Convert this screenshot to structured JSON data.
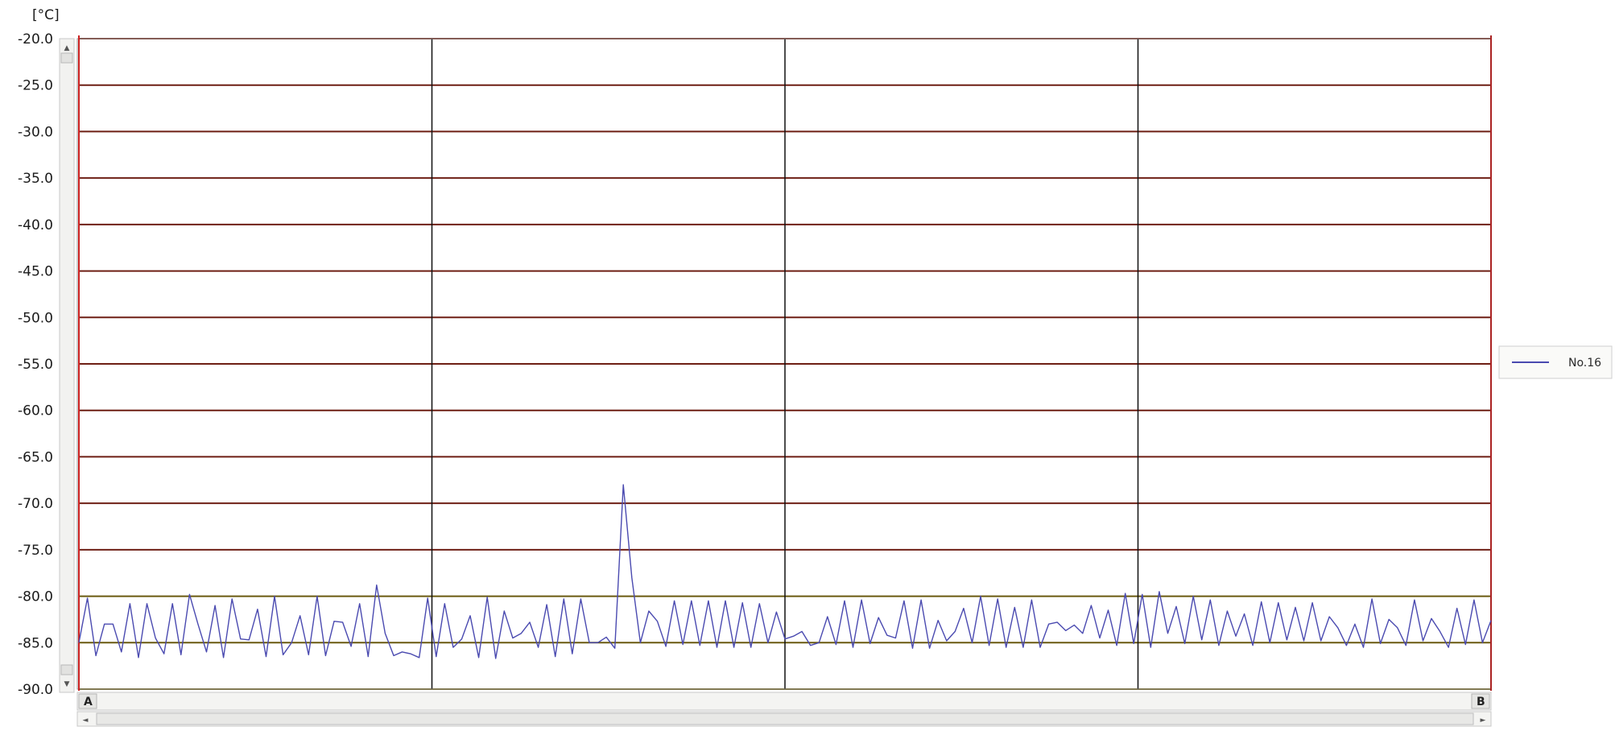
{
  "chart_data": {
    "type": "line",
    "unit_label": "[°C]",
    "ylim": [
      -90.0,
      -20.0
    ],
    "y_ticks": [
      "-20.0",
      "-25.0",
      "-30.0",
      "-35.0",
      "-40.0",
      "-45.0",
      "-50.0",
      "-55.0",
      "-60.0",
      "-65.0",
      "-70.0",
      "-75.0",
      "-80.0",
      "-85.0",
      "-90.0"
    ],
    "vertical_gridlines": 3,
    "grid": true,
    "legend_position": "right",
    "series": [
      {
        "name": "No.16",
        "color": "#4a4ab0",
        "values": [
          -85.0,
          -80.2,
          -86.4,
          -83.0,
          -83.0,
          -86.0,
          -80.8,
          -86.6,
          -80.8,
          -84.5,
          -86.2,
          -80.8,
          -86.3,
          -79.8,
          -83.0,
          -86.0,
          -81.0,
          -86.6,
          -80.3,
          -84.6,
          -84.7,
          -81.4,
          -86.5,
          -80.0,
          -86.3,
          -85.0,
          -82.1,
          -86.3,
          -80.0,
          -86.4,
          -82.7,
          -82.8,
          -85.4,
          -80.8,
          -86.5,
          -78.8,
          -84.0,
          -86.4,
          -86.0,
          -86.2,
          -86.6,
          -80.2,
          -86.5,
          -80.8,
          -85.5,
          -84.6,
          -82.1,
          -86.6,
          -80.1,
          -86.7,
          -81.6,
          -84.5,
          -84.0,
          -82.8,
          -85.5,
          -80.9,
          -86.5,
          -80.3,
          -86.2,
          -80.3,
          -85.0,
          -85.0,
          -84.4,
          -85.6,
          -68.0,
          -78.0,
          -85.0,
          -81.6,
          -82.7,
          -85.4,
          -80.5,
          -85.2,
          -80.5,
          -85.3,
          -80.5,
          -85.5,
          -80.5,
          -85.5,
          -80.7,
          -85.5,
          -80.8,
          -85.0,
          -81.7,
          -84.6,
          -84.3,
          -83.8,
          -85.3,
          -85.0,
          -82.2,
          -85.2,
          -80.5,
          -85.5,
          -80.4,
          -85.1,
          -82.3,
          -84.2,
          -84.5,
          -80.5,
          -85.6,
          -80.4,
          -85.6,
          -82.6,
          -84.8,
          -83.8,
          -81.3,
          -85.0,
          -80.0,
          -85.3,
          -80.3,
          -85.5,
          -81.2,
          -85.5,
          -80.4,
          -85.5,
          -83.0,
          -82.8,
          -83.7,
          -83.1,
          -84.0,
          -81.0,
          -84.5,
          -81.5,
          -85.3,
          -79.7,
          -85.1,
          -79.8,
          -85.5,
          -79.5,
          -84.0,
          -81.1,
          -85.1,
          -80.0,
          -84.7,
          -80.4,
          -85.3,
          -81.6,
          -84.3,
          -81.9,
          -85.3,
          -80.6,
          -85.0,
          -80.7,
          -84.7,
          -81.2,
          -84.8,
          -80.7,
          -84.8,
          -82.2,
          -83.4,
          -85.3,
          -83.0,
          -85.5,
          -80.3,
          -85.1,
          -82.5,
          -83.4,
          -85.3,
          -80.4,
          -84.8,
          -82.4,
          -83.8,
          -85.5,
          -81.3,
          -85.2,
          -80.4,
          -85.0,
          -82.6
        ]
      }
    ]
  },
  "scrollbar": {
    "start_marker": "A",
    "end_marker": "B",
    "arrow_up": "▲",
    "arrow_down": "▼",
    "arrow_left": "◄",
    "arrow_right": "►"
  },
  "colors": {
    "horizontal_grid": "#6e1f14",
    "vertical_grid": "#111111",
    "lower_band_grid": "#6a5a10",
    "plot_border_left": "#cc2222",
    "plot_border_right": "#aa2222"
  }
}
